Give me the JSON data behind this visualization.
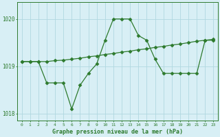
{
  "line_smooth": {
    "x": [
      0,
      1,
      2,
      3,
      4,
      5,
      6,
      7,
      8,
      9,
      10,
      11,
      12,
      13,
      14,
      15,
      16,
      17,
      18,
      19,
      20,
      21,
      22,
      23
    ],
    "y": [
      1019.1,
      1019.1,
      1019.1,
      1019.1,
      1019.12,
      1019.13,
      1019.15,
      1019.17,
      1019.2,
      1019.22,
      1019.25,
      1019.27,
      1019.3,
      1019.32,
      1019.35,
      1019.37,
      1019.4,
      1019.42,
      1019.45,
      1019.47,
      1019.5,
      1019.53,
      1019.55,
      1019.57
    ],
    "color": "#2d7a2d",
    "linewidth": 0.9,
    "markersize": 2.5
  },
  "line_jagged": {
    "x": [
      0,
      1,
      2,
      3,
      4,
      5,
      6,
      7,
      8,
      9,
      10,
      11,
      12,
      13,
      14,
      15,
      16,
      17,
      18,
      19,
      20,
      21,
      22,
      23
    ],
    "y": [
      1019.1,
      1019.1,
      1019.1,
      1018.65,
      1018.65,
      1018.65,
      1018.1,
      1018.6,
      1018.85,
      1019.05,
      1019.55,
      1020.0,
      1020.0,
      1020.0,
      1019.65,
      1019.55,
      1019.15,
      1018.85,
      1018.85,
      1018.85,
      1018.85,
      1018.85,
      1019.55,
      1019.55
    ],
    "color": "#2d7a2d",
    "linewidth": 0.9,
    "markersize": 2.5
  },
  "ylim": [
    1017.85,
    1020.35
  ],
  "yticks": [
    1018,
    1019,
    1020
  ],
  "xlim": [
    -0.5,
    23.5
  ],
  "xticks": [
    0,
    1,
    2,
    3,
    4,
    5,
    6,
    7,
    8,
    9,
    10,
    11,
    12,
    13,
    14,
    15,
    16,
    17,
    18,
    19,
    20,
    21,
    22,
    23
  ],
  "xtick_labels": [
    "0",
    "1",
    "2",
    "3",
    "4",
    "5",
    "6",
    "7",
    "8",
    "9",
    "10",
    "11",
    "12",
    "13",
    "14",
    "15",
    "16",
    "17",
    "18",
    "19",
    "20",
    "21",
    "22",
    "23"
  ],
  "xlabel": "Graphe pression niveau de la mer (hPa)",
  "bg_color": "#d8eff5",
  "grid_color": "#b0d8e0",
  "axis_color": "#2d7a2d",
  "text_color": "#2d7a2d",
  "marker": "D",
  "title_color": "#2d7a2d"
}
